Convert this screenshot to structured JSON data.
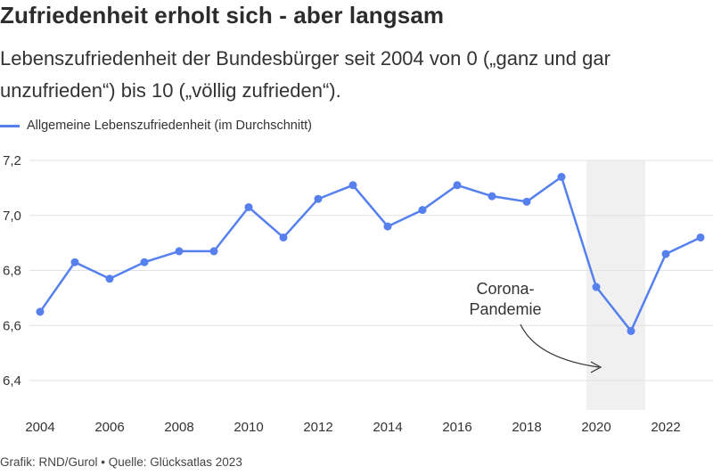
{
  "header": {
    "title": "Zufriedenheit erholt sich - aber langsam",
    "subtitle": "Lebenszufriedenheit der Bundesbürger seit 2004 von 0 („ganz und gar unzufrieden“) bis 10 („völlig zufrieden“)."
  },
  "footer": {
    "credit": "Grafik: RND/Gurol • Quelle: Glücksatlas 2023"
  },
  "colors": {
    "line": "#5580ee",
    "grid": "#e2e2e2",
    "highlight": "#f0f0f0",
    "text": "#333333"
  },
  "chart_data": {
    "type": "line",
    "title": "Zufriedenheit erholt sich - aber langsam",
    "subtitle": "Lebenszufriedenheit der Bundesbürger seit 2004 von 0 („ganz und gar unzufrieden“) bis 10 („völlig zufrieden“).",
    "legend_position": "top-left",
    "grid": true,
    "ylim": [
      6.4,
      7.2
    ],
    "yticks": [
      "6,4",
      "6,6",
      "6,8",
      "7,0",
      "7,2"
    ],
    "xticks": [
      "2004",
      "2006",
      "2008",
      "2010",
      "2012",
      "2014",
      "2016",
      "2018",
      "2020",
      "2022"
    ],
    "x": [
      2004,
      2005,
      2006,
      2007,
      2008,
      2009,
      2010,
      2011,
      2012,
      2013,
      2014,
      2015,
      2016,
      2017,
      2018,
      2019,
      2020,
      2021,
      2022,
      2023
    ],
    "series": [
      {
        "name": "Allgemeine Lebenszufriedenheit (im Durchschnitt)",
        "values": [
          6.65,
          6.83,
          6.77,
          6.83,
          6.87,
          6.87,
          7.03,
          6.92,
          7.06,
          7.11,
          6.96,
          7.02,
          7.11,
          7.07,
          7.05,
          7.14,
          6.74,
          6.58,
          6.86,
          6.92
        ]
      }
    ],
    "highlight": {
      "x_range": [
        2020,
        2021
      ],
      "label": "Corona-Pandemie",
      "label_lines": [
        "Corona-",
        "Pandemie"
      ]
    }
  }
}
